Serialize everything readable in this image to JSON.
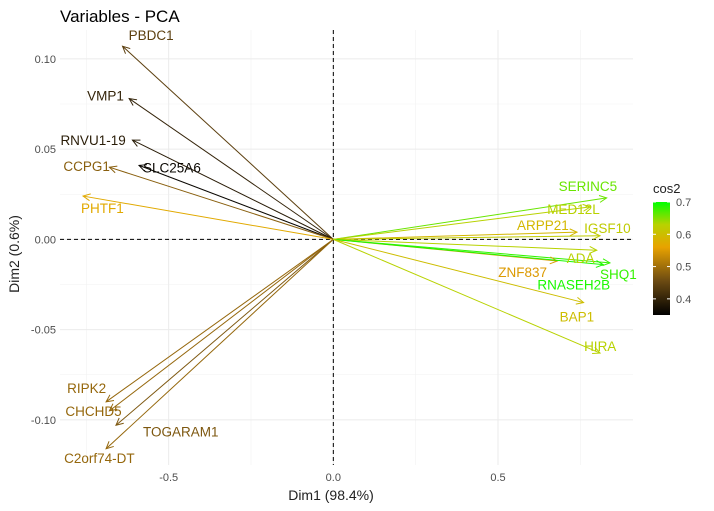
{
  "chart_data": {
    "type": "scatter",
    "subtype": "pca-variable-correlation-arrows",
    "title": "Variables - PCA",
    "xlabel": "Dim1 (98.4%)",
    "ylabel": "Dim2 (0.6%)",
    "xlim": [
      -0.83,
      0.91
    ],
    "ylim": [
      -0.125,
      0.116
    ],
    "xticks": [
      -0.5,
      0.0,
      0.5
    ],
    "xtick_labels": [
      "-0.5",
      "0.0",
      "0.5"
    ],
    "yticks": [
      -0.1,
      -0.05,
      0.0,
      0.05,
      0.1
    ],
    "ytick_labels": [
      "-0.10",
      "-0.05",
      "0.00",
      "0.05",
      "0.10"
    ],
    "grid": true,
    "reference_lines": {
      "x": 0,
      "y": 0,
      "style": "dashed"
    },
    "legend": {
      "title": "cos2",
      "position": "right",
      "range": [
        0.35,
        0.7
      ],
      "ticks": [
        0.4,
        0.5,
        0.6,
        0.7
      ],
      "tick_labels": [
        "0.4",
        "0.5",
        "0.6",
        "0.7"
      ],
      "colors": [
        "#000000",
        "#6b4a12",
        "#e8a200",
        "#b8d200",
        "#00ff00"
      ]
    },
    "variables": [
      {
        "name": "PBDC1",
        "x": -0.64,
        "y": 0.107,
        "cos2": 0.44
      },
      {
        "name": "VMP1",
        "x": -0.62,
        "y": 0.078,
        "cos2": 0.4
      },
      {
        "name": "RNVU1-19",
        "x": -0.61,
        "y": 0.055,
        "cos2": 0.39
      },
      {
        "name": "SLC25A6",
        "x": -0.59,
        "y": 0.041,
        "cos2": 0.36
      },
      {
        "name": "CCPG1",
        "x": -0.68,
        "y": 0.04,
        "cos2": 0.48
      },
      {
        "name": "PHTF1",
        "x": -0.76,
        "y": 0.024,
        "cos2": 0.57
      },
      {
        "name": "RIPK2",
        "x": -0.69,
        "y": -0.09,
        "cos2": 0.49
      },
      {
        "name": "CHCHD5",
        "x": -0.68,
        "y": -0.095,
        "cos2": 0.49
      },
      {
        "name": "TOGARAM1",
        "x": -0.66,
        "y": -0.103,
        "cos2": 0.47
      },
      {
        "name": "C2orf74-DT",
        "x": -0.69,
        "y": -0.116,
        "cos2": 0.49
      },
      {
        "name": "SERINC5",
        "x": 0.83,
        "y": 0.023,
        "cos2": 0.66
      },
      {
        "name": "MED12L",
        "x": 0.78,
        "y": 0.018,
        "cos2": 0.63
      },
      {
        "name": "ARPP21",
        "x": 0.74,
        "y": 0.004,
        "cos2": 0.59
      },
      {
        "name": "IGSF10",
        "x": 0.81,
        "y": 0.002,
        "cos2": 0.62
      },
      {
        "name": "ADA",
        "x": 0.8,
        "y": -0.006,
        "cos2": 0.63
      },
      {
        "name": "SHQ1",
        "x": 0.84,
        "y": -0.013,
        "cos2": 0.68
      },
      {
        "name": "ZNF837",
        "x": 0.68,
        "y": -0.012,
        "cos2": 0.55
      },
      {
        "name": "RNASEH2B",
        "x": 0.82,
        "y": -0.014,
        "cos2": 0.69
      },
      {
        "name": "BAP1",
        "x": 0.76,
        "y": -0.035,
        "cos2": 0.6
      },
      {
        "name": "HIRA",
        "x": 0.81,
        "y": -0.063,
        "cos2": 0.63
      }
    ]
  }
}
